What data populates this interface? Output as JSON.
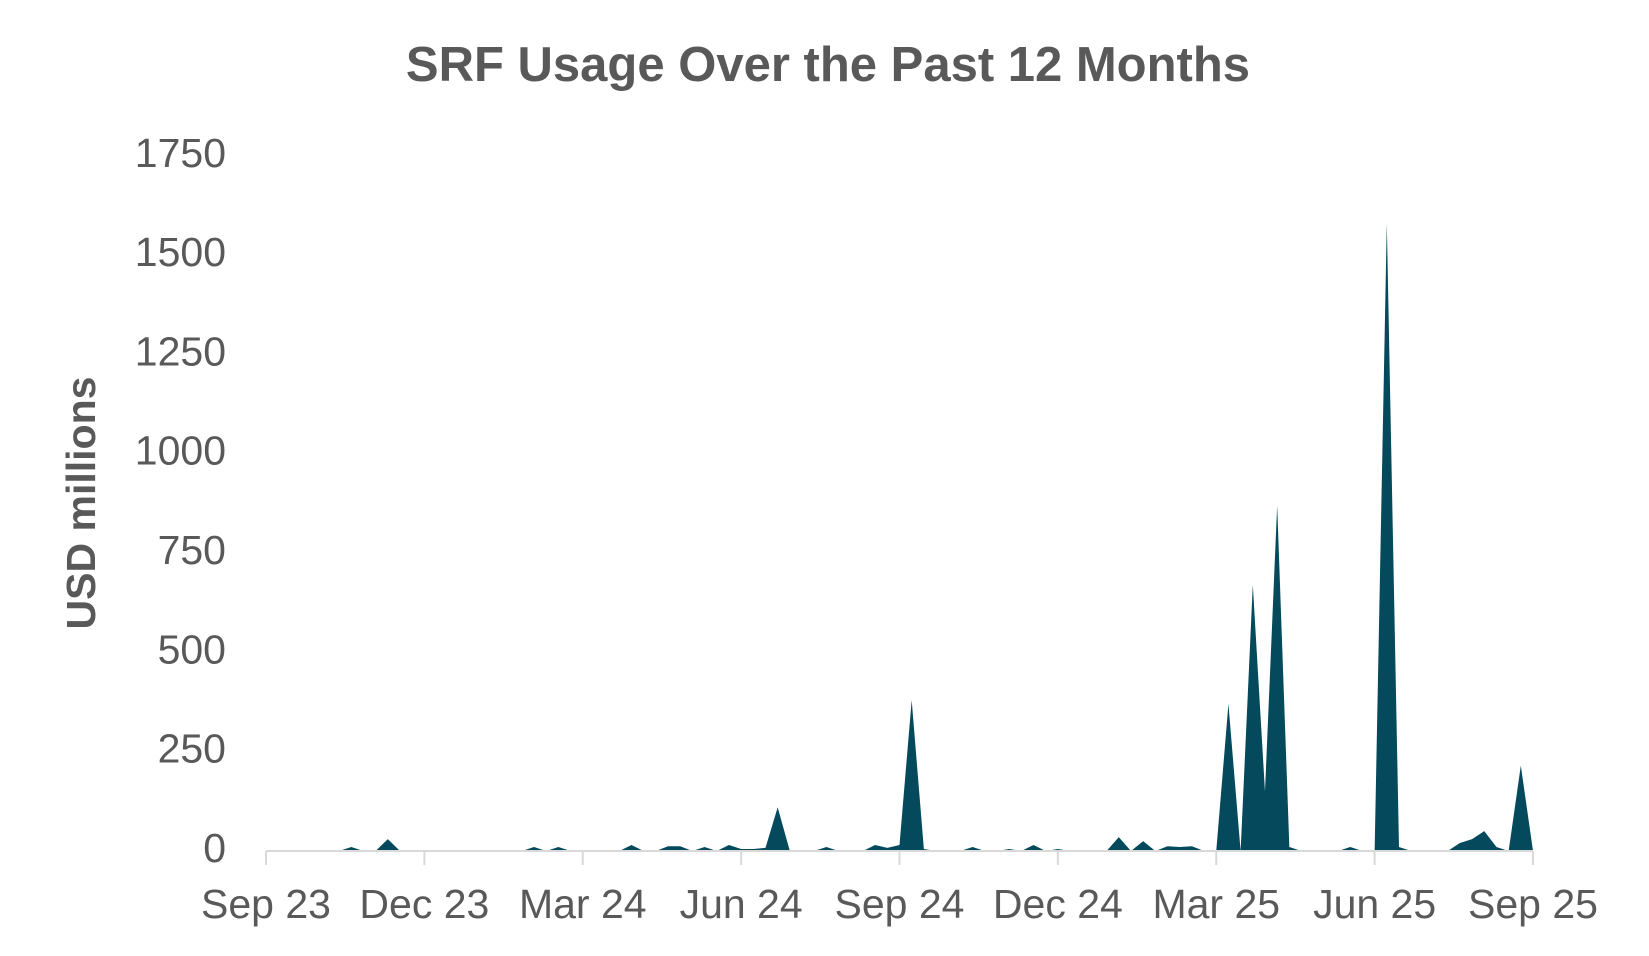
{
  "chart_data": {
    "type": "area",
    "title": "SRF Usage Over the Past 12 Months",
    "y_label": "USD millions",
    "color": "#044a5c",
    "categories": [
      "Sep 23",
      null,
      null,
      null,
      null,
      null,
      null,
      null,
      null,
      null,
      null,
      null,
      null,
      "Dec 23",
      null,
      null,
      null,
      null,
      null,
      null,
      null,
      null,
      null,
      null,
      null,
      null,
      "Mar 24",
      null,
      null,
      null,
      null,
      null,
      null,
      null,
      null,
      null,
      null,
      null,
      null,
      "Jun 24",
      null,
      null,
      null,
      null,
      null,
      null,
      null,
      null,
      null,
      null,
      null,
      null,
      "Sep 24",
      null,
      null,
      null,
      null,
      null,
      null,
      null,
      null,
      null,
      null,
      null,
      null,
      "Dec 24",
      null,
      null,
      null,
      null,
      null,
      null,
      null,
      null,
      null,
      null,
      null,
      null,
      "Mar 25",
      null,
      null,
      null,
      null,
      null,
      null,
      null,
      null,
      null,
      null,
      null,
      null,
      "Jun 25",
      null,
      null,
      null,
      null,
      null,
      null,
      null,
      null,
      null,
      null,
      null,
      null,
      "Sep 25"
    ],
    "values": [
      0,
      0,
      0,
      0,
      0,
      0,
      0,
      10,
      0,
      0,
      30,
      0,
      0,
      0,
      0,
      0,
      0,
      0,
      0,
      0,
      0,
      0,
      10,
      0,
      10,
      0,
      0,
      0,
      0,
      0,
      15,
      0,
      0,
      12,
      12,
      0,
      10,
      0,
      15,
      5,
      5,
      8,
      110,
      0,
      0,
      0,
      10,
      0,
      0,
      0,
      15,
      8,
      15,
      380,
      5,
      0,
      0,
      0,
      10,
      0,
      0,
      5,
      0,
      15,
      0,
      5,
      0,
      0,
      0,
      0,
      35,
      0,
      25,
      0,
      12,
      10,
      12,
      0,
      0,
      370,
      0,
      670,
      150,
      870,
      10,
      0,
      0,
      0,
      0,
      10,
      0,
      0,
      1580,
      10,
      0,
      0,
      0,
      0,
      20,
      30,
      50,
      10,
      0,
      215,
      0
    ],
    "ylim": [
      0,
      1750
    ],
    "yticks": [
      0,
      250,
      500,
      750,
      1000,
      1250,
      1500,
      1750
    ],
    "grid": false
  }
}
